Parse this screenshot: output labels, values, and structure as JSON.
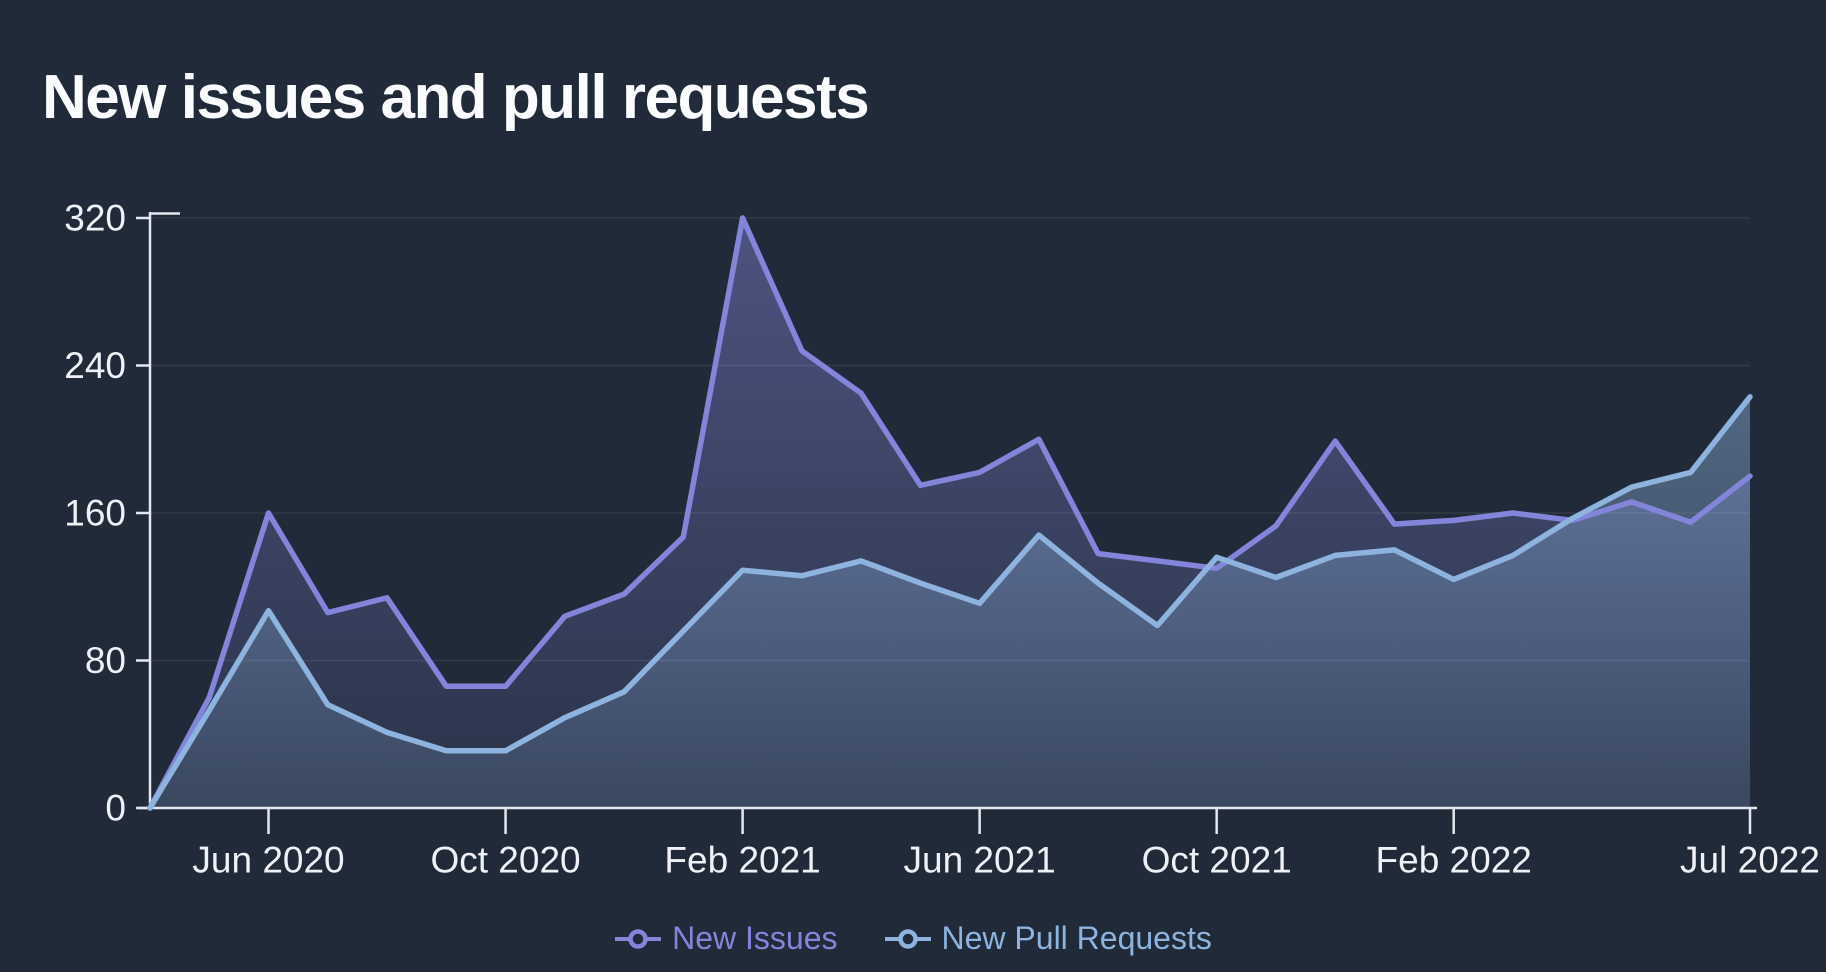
{
  "title": "New issues and pull requests",
  "colors": {
    "background": "#202a38",
    "title_color": "#fbfcfd",
    "axis": "#e4e8ee",
    "tick_labels": "#eef1f5",
    "grid": "rgba(255,255,255,0.08)",
    "issues_accent": "#8285da",
    "pull_requests_accent": "#8db3de"
  },
  "chart_data": {
    "type": "area",
    "title": "New issues and pull requests",
    "xlabel": "",
    "ylabel": "",
    "grid": true,
    "legend_position": "bottom",
    "ylim": [
      0,
      320
    ],
    "yticks": [
      0,
      80,
      160,
      240,
      320
    ],
    "x": [
      "Apr 2020",
      "May 2020",
      "Jun 2020",
      "Jul 2020",
      "Aug 2020",
      "Sep 2020",
      "Oct 2020",
      "Nov 2020",
      "Dec 2020",
      "Jan 2021",
      "Feb 2021",
      "Mar 2021",
      "Apr 2021",
      "May 2021",
      "Jun 2021",
      "Jul 2021",
      "Aug 2021",
      "Sep 2021",
      "Oct 2021",
      "Nov 2021",
      "Dec 2021",
      "Jan 2022",
      "Feb 2022",
      "Mar 2022",
      "Apr 2022",
      "May 2022",
      "Jun 2022",
      "Jul 2022"
    ],
    "xticks": [
      {
        "index": 2,
        "label": "Jun 2020"
      },
      {
        "index": 6,
        "label": "Oct 2020"
      },
      {
        "index": 10,
        "label": "Feb 2021"
      },
      {
        "index": 14,
        "label": "Jun 2021"
      },
      {
        "index": 18,
        "label": "Oct 2021"
      },
      {
        "index": 22,
        "label": "Feb 2022"
      },
      {
        "index": 27,
        "label": "Jul 2022"
      }
    ],
    "series": [
      {
        "name": "New Issues",
        "color": "#8285da",
        "fill_top": "rgba(130,133,216,0.45)",
        "fill_bottom": "rgba(130,133,216,0.10)",
        "values": [
          0,
          60,
          160,
          106,
          114,
          66,
          66,
          104,
          116,
          147,
          320,
          248,
          225,
          175,
          182,
          200,
          138,
          134,
          130,
          153,
          199,
          154,
          156,
          160,
          156,
          166,
          155,
          180
        ]
      },
      {
        "name": "New Pull Requests",
        "color": "#8db3de",
        "fill_top": "rgba(141,179,222,0.45)",
        "fill_bottom": "rgba(141,179,222,0.15)",
        "values": [
          0,
          53,
          107,
          56,
          41,
          31,
          31,
          49,
          63,
          96,
          129,
          126,
          134,
          122,
          111,
          148,
          122,
          99,
          136,
          125,
          137,
          140,
          124,
          137,
          157,
          174,
          182,
          223
        ]
      }
    ]
  }
}
